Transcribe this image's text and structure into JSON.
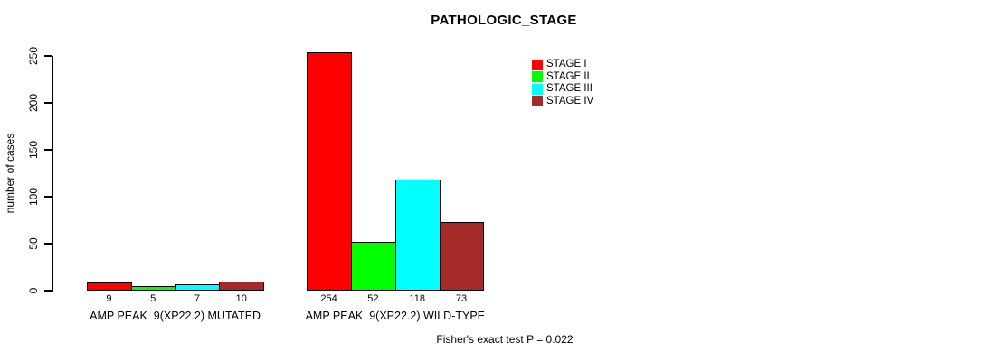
{
  "chart_data": {
    "type": "bar",
    "title": "PATHOLOGIC_STAGE",
    "ylabel": "number of cases",
    "categories": [
      "STAGE I",
      "STAGE II",
      "STAGE III",
      "STAGE IV"
    ],
    "colors": [
      "#ff0000",
      "#00ff00",
      "#00ffff",
      "#a52a2a"
    ],
    "groups": [
      {
        "label": "AMP PEAK  9(XP22.2) MUTATED",
        "values": [
          9,
          5,
          7,
          10
        ]
      },
      {
        "label": "AMP PEAK  9(XP22.2) WILD-TYPE",
        "values": [
          254,
          52,
          118,
          73
        ]
      }
    ],
    "yticks": [
      0,
      50,
      100,
      150,
      200,
      250
    ],
    "ylim": [
      0,
      250
    ],
    "grid": false,
    "legend_position": "top-right",
    "annotation": "Fisher's exact test P = 0.022"
  }
}
